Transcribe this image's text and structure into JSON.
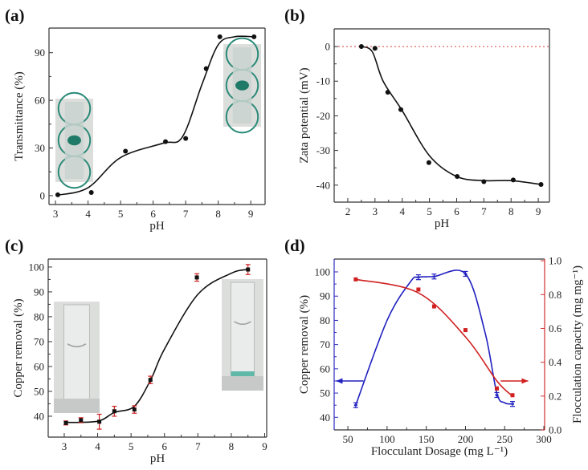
{
  "chart_data": [
    {
      "panel_label": "(a)",
      "type": "scatter",
      "xlabel": "pH",
      "ylabel": "Transmittance (%)",
      "xlim": [
        2.8,
        9.44
      ],
      "ylim": [
        -5.6,
        105.5
      ],
      "xticks": [
        3,
        4,
        5,
        6,
        7,
        8,
        9
      ],
      "yticks": [
        0,
        30,
        60,
        90
      ],
      "series": [
        {
          "name": "Transmittance",
          "color": "#111111",
          "marker": "circle",
          "x": [
            3.07,
            4.1,
            5.15,
            6.38,
            7.0,
            7.63,
            8.05,
            9.1
          ],
          "y": [
            0.5,
            2,
            28,
            34,
            36,
            80,
            100,
            100
          ]
        }
      ],
      "fit_curve": {
        "color": "#111111",
        "x": [
          3.07,
          4.0,
          5.0,
          6.3,
          6.9,
          7.5,
          8.0,
          8.5,
          9.1
        ],
        "y": [
          0.3,
          5,
          24,
          33,
          37,
          70,
          95,
          100,
          100
        ]
      }
    },
    {
      "panel_label": "(b)",
      "type": "scatter",
      "xlabel": "pH",
      "ylabel": "Zata potential (mV)",
      "xlim": [
        1.5,
        9.41
      ],
      "ylim": [
        -44.9,
        5.1
      ],
      "xticks": [
        2,
        3,
        4,
        5,
        6,
        7,
        8,
        9
      ],
      "yticks": [
        0,
        -10,
        -20,
        -30,
        -40
      ],
      "reference_line": {
        "y": 0,
        "color": "#e06060",
        "style": "dotted"
      },
      "series": [
        {
          "name": "Zeta potential",
          "color": "#111111",
          "marker": "circle",
          "x": [
            2.5,
            3.0,
            3.47,
            3.95,
            4.98,
            6.02,
            7.0,
            8.08,
            9.1
          ],
          "y": [
            0,
            -0.5,
            -13.2,
            -18.2,
            -33.5,
            -37.5,
            -39,
            -38.5,
            -39.8
          ]
        }
      ],
      "fit_curve": {
        "color": "#111111",
        "x": [
          2.5,
          2.9,
          3.3,
          4.0,
          5.0,
          6.0,
          7.0,
          8.0,
          9.1
        ],
        "y": [
          0,
          -1.5,
          -10,
          -18.5,
          -31.5,
          -37.5,
          -38.7,
          -38.7,
          -39.8
        ]
      }
    },
    {
      "panel_label": "(c)",
      "type": "scatter",
      "xlabel": "pH",
      "ylabel": "Copper removal (%)",
      "xlim": [
        2.52,
        9.06
      ],
      "ylim": [
        31.6,
        103.2
      ],
      "xticks": [
        3,
        4,
        5,
        6,
        7,
        8,
        9
      ],
      "yticks": [
        40,
        50,
        60,
        70,
        80,
        90,
        100
      ],
      "series": [
        {
          "name": "Copper removal",
          "color": "#111111",
          "marker": "square",
          "error_color": "#d02020",
          "x": [
            3.05,
            3.5,
            4.05,
            4.5,
            5.1,
            5.58,
            6.97,
            8.5
          ],
          "y": [
            37.3,
            38.4,
            37.8,
            42,
            42.7,
            54.6,
            95.8,
            99
          ],
          "err": [
            0.8,
            1,
            3,
            2,
            1.5,
            1.5,
            1.5,
            2
          ]
        }
      ],
      "fit_curve": {
        "color": "#111111",
        "x": [
          3.05,
          4.0,
          4.5,
          5.1,
          5.6,
          6.0,
          7.0,
          8.0,
          8.5
        ],
        "y": [
          37.5,
          38,
          41.5,
          44,
          55,
          67,
          89,
          97.5,
          99
        ]
      }
    },
    {
      "panel_label": "(d)",
      "type": "line",
      "xlabel": "Flocculant Dosage (mg L⁻¹)",
      "ylabel": "Copper removal (%)",
      "ylabel_right": "Flocculation capacity (mg mg⁻¹)",
      "xlim": [
        32.5,
        301
      ],
      "ylim": [
        34.8,
        105.3
      ],
      "ylim_right": [
        0,
        1.01
      ],
      "xticks": [
        50,
        100,
        150,
        200,
        250,
        300
      ],
      "yticks": [
        40,
        50,
        60,
        70,
        80,
        90,
        100
      ],
      "yticks_right": [
        "0.0",
        "0.2",
        "0.4",
        "0.6",
        "0.8",
        "1.0"
      ],
      "left_color": "#2b2bc0",
      "right_color": "#d03030",
      "series": [
        {
          "name": "Copper removal",
          "axis": "left",
          "color": "#2020c0",
          "marker": "dash",
          "x": [
            60,
            140,
            160,
            200,
            240,
            260
          ],
          "y": [
            45,
            97.8,
            98.1,
            99.2,
            49.2,
            45.5
          ],
          "err": [
            1,
            1,
            1,
            1,
            1,
            1
          ],
          "fit_curve": {
            "x": [
              60,
              100,
              130,
              140,
              160,
              200,
              225,
              240,
              250,
              260
            ],
            "y": [
              45,
              80,
              96,
              97.8,
              98.1,
              99.2,
              75,
              50,
              46,
              45.5
            ]
          }
        },
        {
          "name": "Flocculation capacity",
          "axis": "right",
          "color": "#d02020",
          "marker": "square",
          "x": [
            60,
            140,
            160,
            200,
            240,
            260
          ],
          "y": [
            0.89,
            0.83,
            0.73,
            0.59,
            0.245,
            0.205
          ],
          "fit_curve": {
            "x": [
              60,
              140,
              200,
              240,
              260
            ],
            "y": [
              0.89,
              0.81,
              0.55,
              0.29,
              0.2
            ]
          }
        }
      ],
      "annotations": [
        {
          "type": "arrow",
          "direction": "left",
          "axis": "left",
          "color": "#2020c0",
          "x": [
            70,
            35
          ],
          "y": 55
        },
        {
          "type": "arrow",
          "direction": "right",
          "axis": "left",
          "color": "#d02020",
          "x": [
            245,
            280
          ],
          "y": 55
        }
      ]
    }
  ]
}
